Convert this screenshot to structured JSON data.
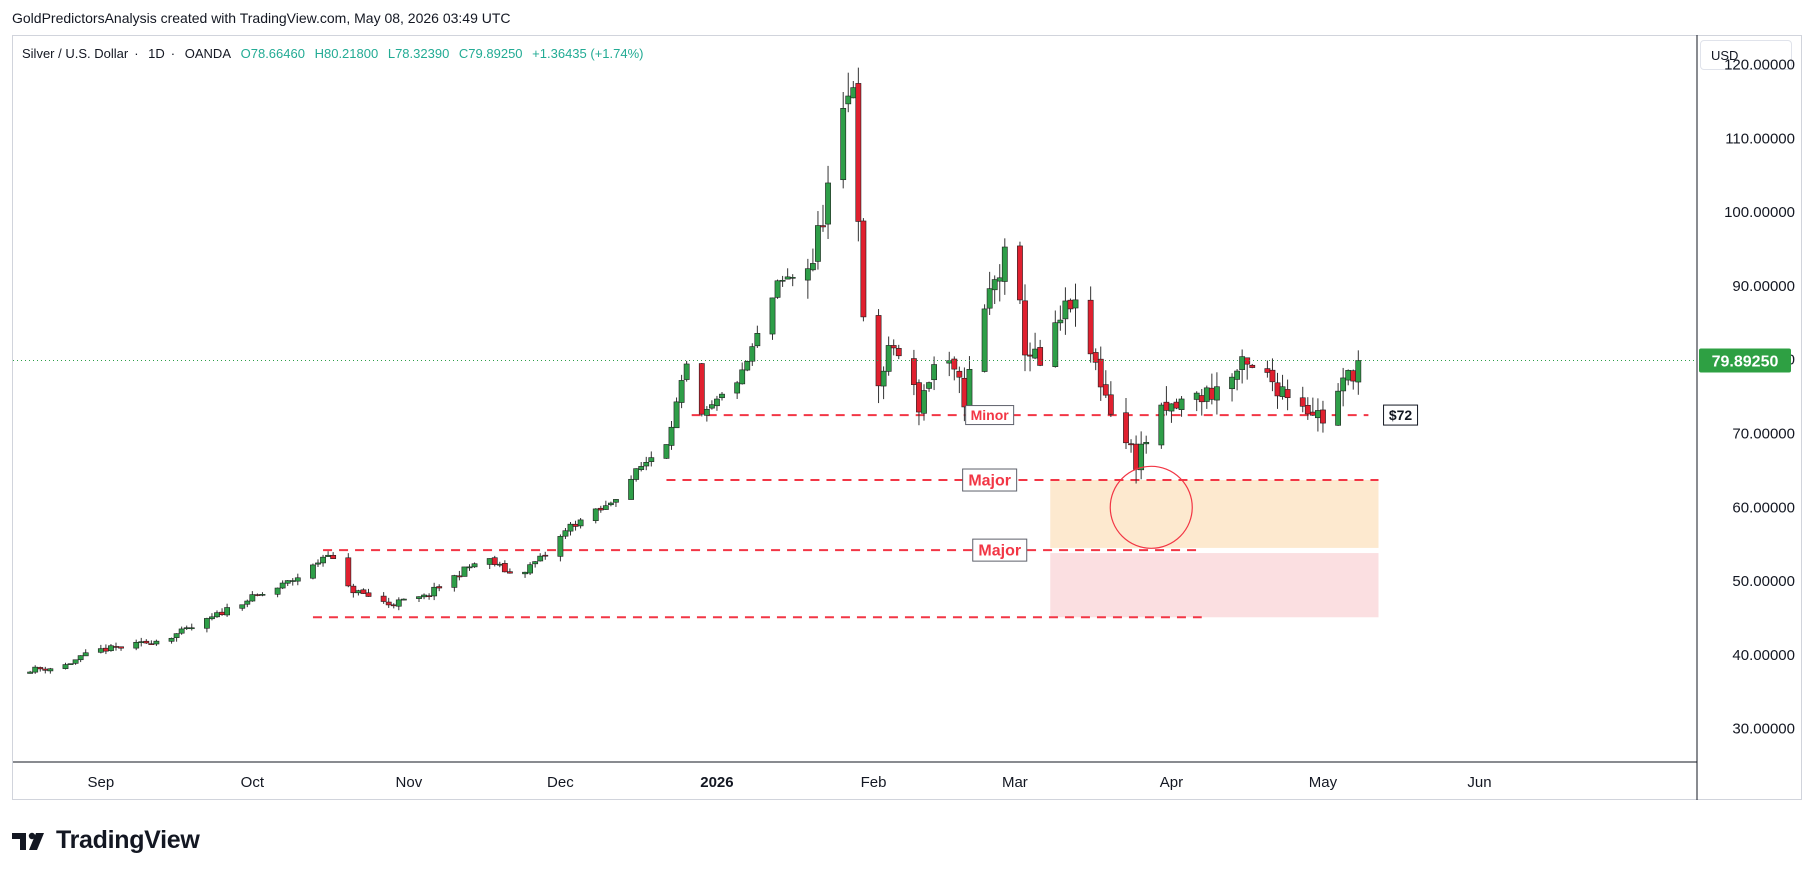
{
  "header_note": "GoldPredictorsAnalysis created with TradingView.com, May 08, 2026 03:49 UTC",
  "symbol": {
    "name": "Silver / U.S. Dollar",
    "interval": "1D",
    "source": "OANDA",
    "open": "O78.66460",
    "high": "H80.21800",
    "low": "L78.32390",
    "close": "C79.89250",
    "change": "+1.36435 (+1.74%)"
  },
  "currency": "USD",
  "brand": "TradingView",
  "colors": {
    "up": "#22ab94",
    "candle_up": "#2e9e48",
    "candle_down": "#e0202f",
    "level_line": "#f23645",
    "price_label_bg": "#2ea043",
    "zone_orange": "#fde9cf",
    "zone_pink": "#fbdfe1"
  },
  "chart_data": {
    "type": "candlestick",
    "ylim": [
      28,
      124
    ],
    "y_ticks": [
      {
        "value": 120,
        "label": "120.00000"
      },
      {
        "value": 110,
        "label": "110.00000"
      },
      {
        "value": 100,
        "label": "100.00000"
      },
      {
        "value": 90,
        "label": "90.00000"
      },
      {
        "value": 80,
        "label": "80.00000"
      },
      {
        "value": 70,
        "label": "70.00000"
      },
      {
        "value": 60,
        "label": "60.00000"
      },
      {
        "value": 50,
        "label": "50.00000"
      },
      {
        "value": 40,
        "label": "40.00000"
      },
      {
        "value": 30,
        "label": "30.00000"
      }
    ],
    "x_ticks": [
      "Sep",
      "Oct",
      "Nov",
      "Dec",
      "2026",
      "Feb",
      "Mar",
      "Apr",
      "May",
      "Jun"
    ],
    "last_price": {
      "value": 79.8925,
      "label": "79.89250"
    },
    "levels": [
      {
        "value": 72.5,
        "label": "Minor"
      },
      {
        "value": 63.7,
        "label": "Major"
      },
      {
        "value": 54.2,
        "label": "Major"
      },
      {
        "value": 45.1,
        "label": ""
      }
    ],
    "price_tag": {
      "value": 72.5,
      "label": "$72"
    },
    "zones": [
      {
        "from": 54.5,
        "to": 63.7,
        "color": "orange"
      },
      {
        "from": 45.1,
        "to": 53.8,
        "color": "pink"
      }
    ],
    "circle_marker": {
      "price": 60.0
    },
    "anchors": [
      {
        "date": "2025-08-17",
        "close": 38.0
      },
      {
        "date": "2025-08-24",
        "close": 38.3
      },
      {
        "date": "2025-08-31",
        "close": 40.6
      },
      {
        "date": "2025-09-07",
        "close": 41.2
      },
      {
        "date": "2025-09-14",
        "close": 42.3
      },
      {
        "date": "2025-09-21",
        "close": 44.2
      },
      {
        "date": "2025-09-28",
        "close": 47.0
      },
      {
        "date": "2025-10-05",
        "close": 48.7
      },
      {
        "date": "2025-10-12",
        "close": 51.3
      },
      {
        "date": "2025-10-16",
        "close": 54.0
      },
      {
        "date": "2025-10-20",
        "close": 49.0
      },
      {
        "date": "2025-10-28",
        "close": 46.9
      },
      {
        "date": "2025-11-04",
        "close": 47.8
      },
      {
        "date": "2025-11-12",
        "close": 51.5
      },
      {
        "date": "2025-11-16",
        "close": 53.2
      },
      {
        "date": "2025-11-22",
        "close": 50.6
      },
      {
        "date": "2025-11-28",
        "close": 53.5
      },
      {
        "date": "2025-12-03",
        "close": 57.5
      },
      {
        "date": "2025-12-10",
        "close": 60.0
      },
      {
        "date": "2025-12-17",
        "close": 65.5
      },
      {
        "date": "2025-12-22",
        "close": 69.0
      },
      {
        "date": "2025-12-26",
        "close": 79.0
      },
      {
        "date": "2025-12-29",
        "close": 72.0
      },
      {
        "date": "2026-01-06",
        "close": 78.0
      },
      {
        "date": "2026-01-13",
        "close": 90.0
      },
      {
        "date": "2026-01-20",
        "close": 93.5
      },
      {
        "date": "2026-01-23",
        "close": 103.0
      },
      {
        "date": "2026-01-28",
        "close": 118.0
      },
      {
        "date": "2026-01-30",
        "close": 84.0
      },
      {
        "date": "2026-02-02",
        "close": 77.0
      },
      {
        "date": "2026-02-05",
        "close": 82.0
      },
      {
        "date": "2026-02-10",
        "close": 74.0
      },
      {
        "date": "2026-02-14",
        "close": 81.0
      },
      {
        "date": "2026-02-19",
        "close": 75.0
      },
      {
        "date": "2026-02-24",
        "close": 89.0
      },
      {
        "date": "2026-02-28",
        "close": 95.0
      },
      {
        "date": "2026-03-03",
        "close": 82.0
      },
      {
        "date": "2026-03-06",
        "close": 79.0
      },
      {
        "date": "2026-03-12",
        "close": 88.0
      },
      {
        "date": "2026-03-17",
        "close": 79.0
      },
      {
        "date": "2026-03-22",
        "close": 70.0
      },
      {
        "date": "2026-03-25",
        "close": 66.5
      },
      {
        "date": "2026-03-29",
        "close": 72.0
      },
      {
        "date": "2026-04-03",
        "close": 74.0
      },
      {
        "date": "2026-04-10",
        "close": 76.0
      },
      {
        "date": "2026-04-15",
        "close": 78.8
      },
      {
        "date": "2026-04-20",
        "close": 77.5
      },
      {
        "date": "2026-04-26",
        "close": 75.0
      },
      {
        "date": "2026-05-01",
        "close": 72.0
      },
      {
        "date": "2026-05-08",
        "close": 79.89
      }
    ]
  }
}
